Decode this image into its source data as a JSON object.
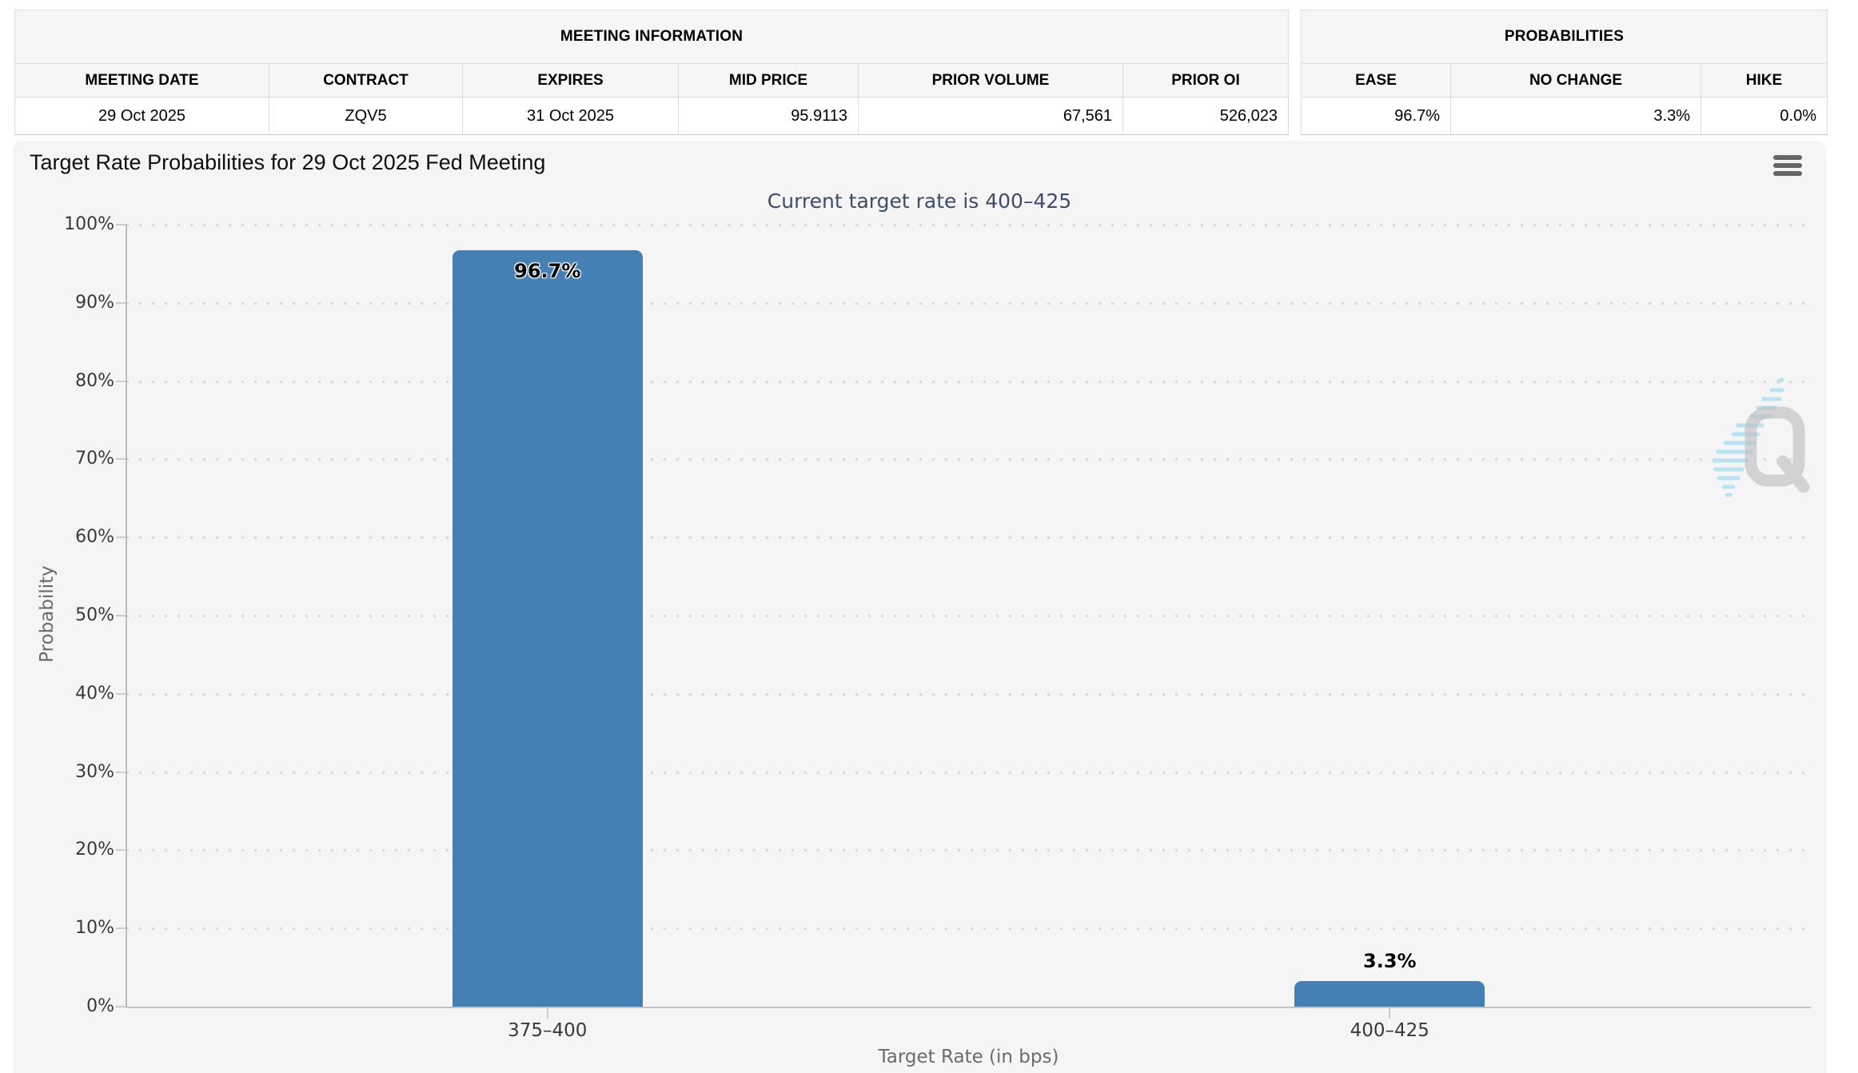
{
  "meeting_info": {
    "caption": "MEETING INFORMATION",
    "headers": [
      "MEETING DATE",
      "CONTRACT",
      "EXPIRES",
      "MID PRICE",
      "PRIOR VOLUME",
      "PRIOR OI"
    ],
    "row": [
      "29 Oct 2025",
      "ZQV5",
      "31 Oct 2025",
      "95.9113",
      "67,561",
      "526,023"
    ]
  },
  "probabilities": {
    "caption": "PROBABILITIES",
    "headers": [
      "EASE",
      "NO CHANGE",
      "HIKE"
    ],
    "row": [
      "96.7%",
      "3.3%",
      "0.0%"
    ]
  },
  "chart": {
    "title": "Target Rate Probabilities for 29 Oct 2025 Fed Meeting",
    "subtitle": "Current target rate is 400–425",
    "menu_icon": "hamburger-icon",
    "watermark_icon": "quikstrike-q-logo",
    "colors": {
      "bar": "#4580b4",
      "subtitle": "#3d4c6b",
      "chart_background": "#f5f5f5",
      "grid_dots": "#d9d9d9",
      "axis_line": "#bcbcbc"
    }
  },
  "chart_data": {
    "type": "bar",
    "categories": [
      "375–400",
      "400–425"
    ],
    "values": [
      96.7,
      3.3
    ],
    "data_labels": [
      "96.7%",
      "3.3%"
    ],
    "title": "Target Rate Probabilities for 29 Oct 2025 Fed Meeting",
    "subtitle": "Current target rate is 400–425",
    "xlabel": "Target Rate (in bps)",
    "ylabel": "Probability",
    "ylim": [
      0,
      100
    ],
    "ytick_step": 10,
    "ytick_suffix": "%",
    "grid": "dotted-horizontal",
    "legend": "none",
    "bar_color": "#4580b4"
  }
}
